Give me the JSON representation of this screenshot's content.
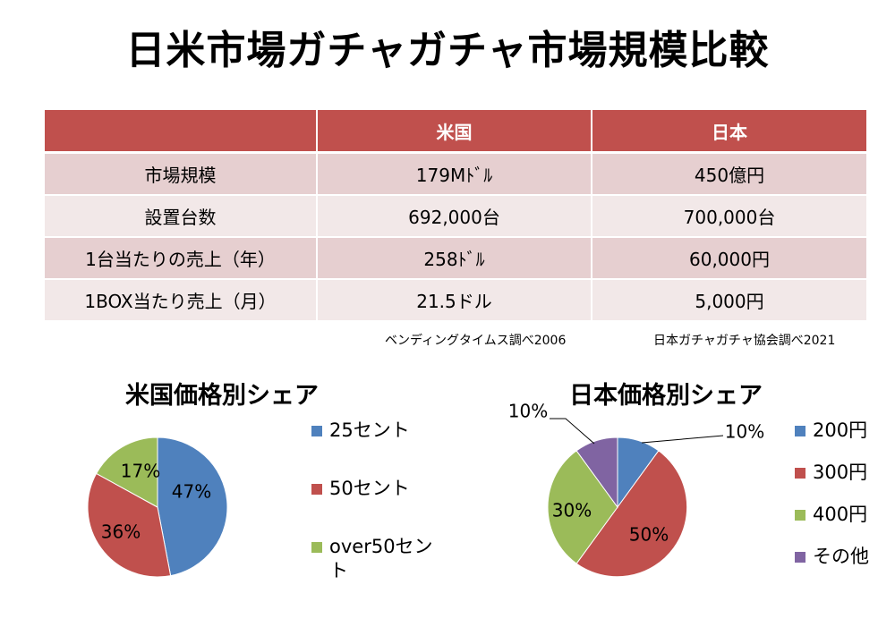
{
  "page_title": "日米市場ガチャガチャ市場規模比較",
  "table": {
    "headers": [
      "",
      "米国",
      "日本"
    ],
    "rows": [
      [
        "市場規模",
        "179Mﾄﾞﾙ",
        "450億円"
      ],
      [
        "設置台数",
        "692,000台",
        "700,000台"
      ],
      [
        "1台当たりの売上（年）",
        "258ﾄﾞﾙ",
        "60,000円"
      ],
      [
        "1BOX当たり売上（月）",
        "21.5ドル",
        "5,000円"
      ]
    ]
  },
  "sources": {
    "us": "ベンディングタイムス調べ2006",
    "jp": "日本ガチャガチャ協会調べ2021"
  },
  "chart_data": [
    {
      "type": "pie",
      "title": "米国価格別シェア",
      "categories": [
        "25セント",
        "50セント",
        "over50セント"
      ],
      "values": [
        47,
        36,
        17
      ],
      "labels": [
        "47%",
        "36%",
        "17%"
      ],
      "colors": [
        "#4f81bd",
        "#c0504d",
        "#9bbb59"
      ],
      "legend": "right"
    },
    {
      "type": "pie",
      "title": "日本価格別シェア",
      "categories": [
        "200円",
        "300円",
        "400円",
        "その他"
      ],
      "values": [
        10,
        50,
        30,
        10
      ],
      "labels": [
        "10%",
        "50%",
        "30%",
        "10%"
      ],
      "colors": [
        "#4f81bd",
        "#c0504d",
        "#9bbb59",
        "#8064a2"
      ],
      "legend": "right"
    }
  ]
}
